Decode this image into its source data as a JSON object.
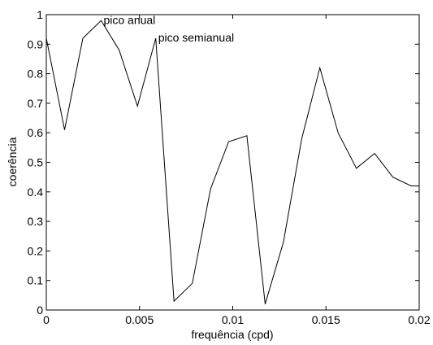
{
  "chart_data": {
    "type": "line",
    "title": "",
    "xlabel": "frequência (cpd)",
    "ylabel": "coerência",
    "xlim": [
      0,
      0.02
    ],
    "ylim": [
      0,
      1
    ],
    "grid": false,
    "x_ticks": [
      0,
      0.005,
      0.01,
      0.015,
      0.02
    ],
    "x_tick_labels": [
      "0",
      "0.005",
      "0.01",
      "0.015",
      "0.02"
    ],
    "y_ticks": [
      0,
      0.1,
      0.2,
      0.3,
      0.4,
      0.5,
      0.6,
      0.7,
      0.8,
      0.9,
      1
    ],
    "y_tick_labels": [
      "0",
      "0.1",
      "0.2",
      "0.3",
      "0.4",
      "0.5",
      "0.6",
      "0.7",
      "0.8",
      "0.9",
      "1"
    ],
    "line_color": "#000000",
    "series": [
      {
        "x": [
          0,
          0.00098,
          0.00196,
          0.00294,
          0.00391,
          0.00489,
          0.00587,
          0.00685,
          0.00783,
          0.00881,
          0.00978,
          0.01076,
          0.01174,
          0.01272,
          0.0137,
          0.01467,
          0.01565,
          0.01663,
          0.01761,
          0.01859,
          0.01957,
          0.02
        ],
        "y": [
          0.92,
          0.61,
          0.92,
          0.98,
          0.88,
          0.69,
          0.92,
          0.03,
          0.09,
          0.41,
          0.57,
          0.59,
          0.02,
          0.23,
          0.58,
          0.82,
          0.6,
          0.48,
          0.53,
          0.45,
          0.42,
          0.42
        ]
      }
    ],
    "annotations": [
      {
        "text": "pico anual",
        "x": 0.00294,
        "y": 0.98
      },
      {
        "text": "pico semianual",
        "x": 0.00587,
        "y": 0.92
      }
    ]
  }
}
